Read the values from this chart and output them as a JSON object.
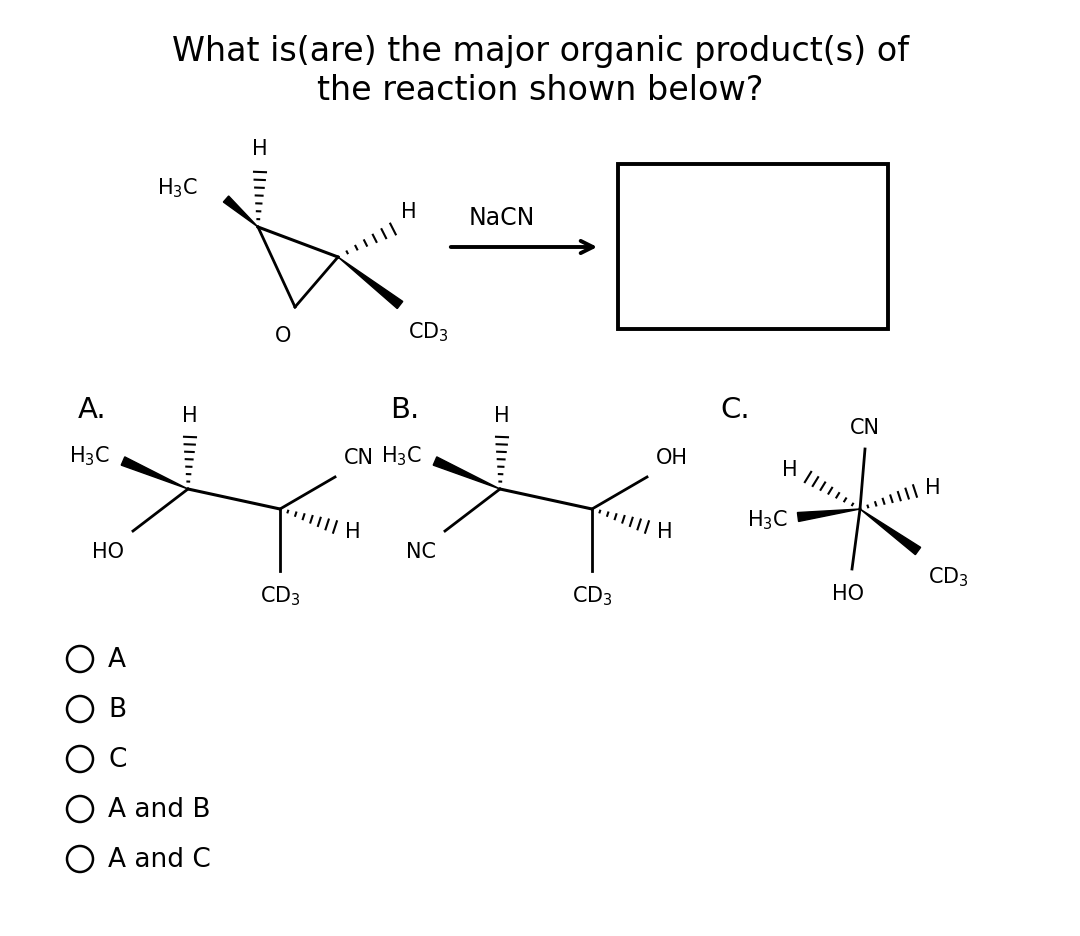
{
  "title_line1": "What is(are) the major organic product(s) of",
  "title_line2": "the reaction shown below?",
  "title_fontsize": 24,
  "bg_color": "#ffffff",
  "text_color": "#000000",
  "option_labels": [
    "A",
    "B",
    "C",
    "A and B",
    "A and C"
  ],
  "option_fontsize": 19,
  "label_fontsize": 21,
  "fs": 15
}
